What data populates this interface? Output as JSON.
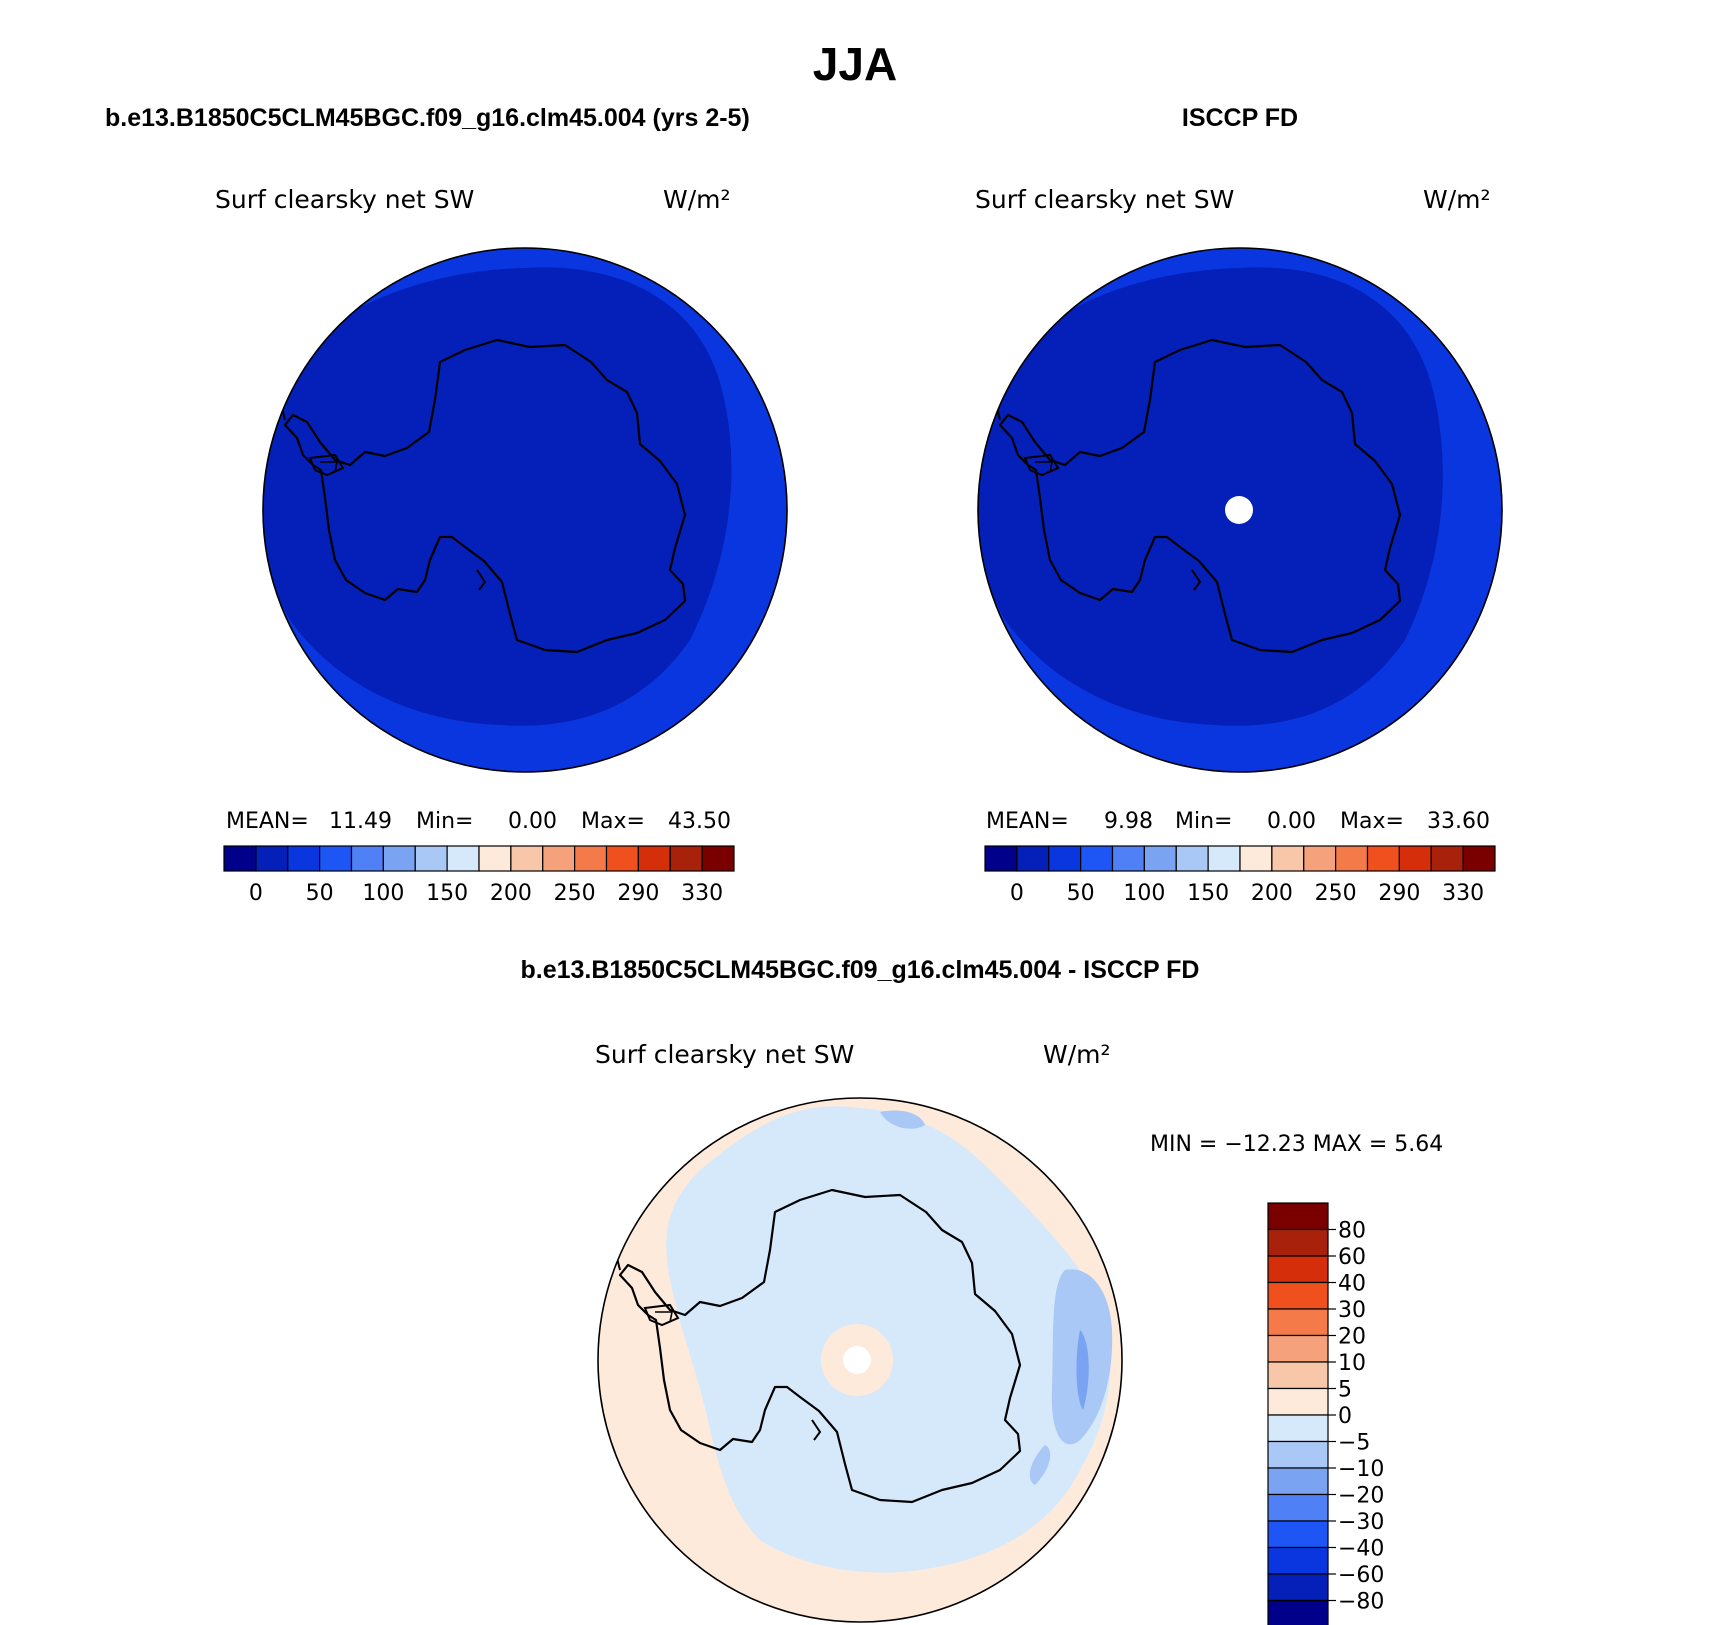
{
  "page_title": "JJA",
  "colors": {
    "dark_navy": "#000080",
    "ice_blue": "#0420b8",
    "ocean_blue": "#0a36e0",
    "light_blue": "#d6e9fb",
    "light_peach": "#fdeadb",
    "mid_blue": "#a9c8f6",
    "blue2": "#7aa3f2",
    "blue3": "#4f80f5",
    "peach": "#f8c6a8"
  },
  "panels": [
    {
      "heading": "b.e13.B1850C5CLM45BGC.f09_g16.clm45.004 (yrs 2-5)",
      "variable_label": "Surf clearsky net SW",
      "units_label": "W/m²",
      "stats": {
        "mean_label": "MEAN=",
        "mean": "11.49",
        "min_label": "Min=",
        "min": "0.00",
        "max_label": "Max=",
        "max": "43.50"
      },
      "pole_hole": false
    },
    {
      "heading": "ISCCP FD",
      "variable_label": "Surf clearsky net SW",
      "units_label": "W/m²",
      "stats": {
        "mean_label": "MEAN=",
        "mean": "9.98",
        "min_label": "Min=",
        "min": "0.00",
        "max_label": "Max=",
        "max": "33.60"
      },
      "pole_hole": true
    }
  ],
  "horizontal_colorbar": {
    "colors": [
      "#00008b",
      "#0420b8",
      "#0a36e0",
      "#1e55f5",
      "#4f80f5",
      "#7aa3f2",
      "#a9c8f6",
      "#d6e9fb",
      "#fdeadb",
      "#f8c6a8",
      "#f5a27c",
      "#f47a4a",
      "#f0501e",
      "#d42e0a",
      "#a8210a",
      "#7a0000"
    ],
    "tick_labels": [
      "0",
      "50",
      "100",
      "150",
      "200",
      "250",
      "290",
      "330"
    ]
  },
  "diff_panel": {
    "heading": "b.e13.B1850C5CLM45BGC.f09_g16.clm45.004 - ISCCP FD",
    "variable_label": "Surf clearsky net SW",
    "units_label": "W/m²",
    "minmax_text": "MIN = −12.23 MAX =    5.64"
  },
  "vertical_colorbar": {
    "colors_top_to_bottom": [
      "#7a0000",
      "#a8210a",
      "#d42e0a",
      "#f0501e",
      "#f47a4a",
      "#f5a27c",
      "#f8c6a8",
      "#fdeadb",
      "#d6e9fb",
      "#a9c8f6",
      "#7aa3f2",
      "#4f80f5",
      "#1e55f5",
      "#0a36e0",
      "#0420b8",
      "#00008b"
    ],
    "tick_labels_top_to_bottom": [
      "80",
      "60",
      "40",
      "30",
      "20",
      "10",
      "5",
      "0",
      "−5",
      "−10",
      "−20",
      "−30",
      "−40",
      "−60",
      "−80"
    ]
  }
}
